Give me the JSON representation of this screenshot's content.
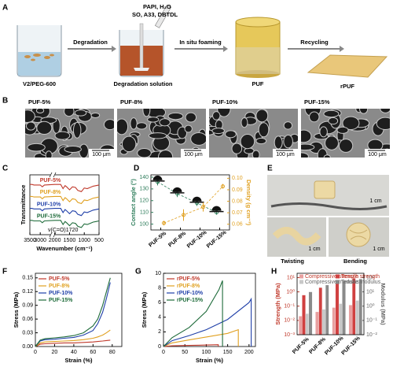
{
  "panel_a": {
    "label": "A",
    "reagents_line1": "PAPI,  H₂O",
    "reagents_line2": "SO,  A33,  DBTDL",
    "steps": [
      "Degradation",
      "In situ foaming",
      "Recycling"
    ],
    "items": [
      "V2/PEG-600",
      "Degradation solution",
      "PUF",
      "rPUF"
    ]
  },
  "panel_b": {
    "label": "B",
    "samples": [
      "PUF-5%",
      "PUF-8%",
      "PUF-10%",
      "PUF-15%"
    ],
    "scale_bar": "100 μm"
  },
  "panel_e": {
    "label": "E",
    "scale_bar": "1 cm",
    "captions": [
      "Twisting",
      "Bending"
    ]
  },
  "chart_data": [
    {
      "panel": "C",
      "type": "line",
      "xlabel": "Wavenumber (cm⁻¹)",
      "ylabel": "Transmittance",
      "annotation": "ν(C=O)1720",
      "x": [
        3500,
        3400,
        3300,
        3000,
        2900,
        2800,
        2000,
        1800,
        1720,
        1650,
        1600,
        1500,
        1400,
        1300,
        1220,
        1100,
        1000,
        900,
        800,
        700,
        600,
        500
      ],
      "xlim": [
        3500,
        500
      ],
      "xbreak": [
        2500,
        2000
      ],
      "xticks": [
        3500,
        3000,
        2000,
        1500,
        1000,
        500
      ],
      "ylim": [
        0,
        5
      ],
      "series": [
        {
          "name": "PUF-5%",
          "color": "#c0392b",
          "values": [
            4.2,
            4.2,
            4.15,
            4.15,
            4.0,
            4.15,
            4.2,
            4.2,
            3.85,
            4.1,
            4.0,
            3.75,
            4.0,
            3.95,
            3.7,
            3.6,
            3.9,
            3.85,
            3.95,
            4.05,
            4.1,
            4.15
          ]
        },
        {
          "name": "PUF-8%",
          "color": "#e0a020",
          "values": [
            3.2,
            3.2,
            3.15,
            3.15,
            3.0,
            3.15,
            3.2,
            3.2,
            2.85,
            3.1,
            3.0,
            2.75,
            3.0,
            2.95,
            2.7,
            2.6,
            2.9,
            2.85,
            2.95,
            3.05,
            3.1,
            3.15
          ]
        },
        {
          "name": "PUF-10%",
          "color": "#1f3fa8",
          "values": [
            2.2,
            2.2,
            2.15,
            2.15,
            2.0,
            2.15,
            2.2,
            2.2,
            1.85,
            2.1,
            2.0,
            1.75,
            2.0,
            1.95,
            1.7,
            1.6,
            1.9,
            1.85,
            1.95,
            2.05,
            2.1,
            2.15
          ]
        },
        {
          "name": "PUF-15%",
          "color": "#1e6b3a",
          "values": [
            1.2,
            1.2,
            1.15,
            1.15,
            1.0,
            1.15,
            1.2,
            1.2,
            0.85,
            1.1,
            1.0,
            0.75,
            1.0,
            0.95,
            0.7,
            0.6,
            0.9,
            0.85,
            0.95,
            1.05,
            1.1,
            1.15
          ]
        }
      ]
    },
    {
      "panel": "D",
      "type": "scatter",
      "ylabel": "Contact angle (°)",
      "y2label": "Density (g cm⁻³)",
      "categories": [
        "PUF-5%",
        "PUF-8%",
        "PUF-10%",
        "PUF-15%"
      ],
      "ylim": [
        95,
        142
      ],
      "yticks": [
        100,
        110,
        120,
        130,
        140
      ],
      "y2lim": [
        0.055,
        0.103
      ],
      "y2ticks": [
        0.06,
        0.07,
        0.08,
        0.09,
        {
          "value": 0.1,
          "label": "0.10"
        }
      ],
      "series": [
        {
          "color": "#2e7d5b",
          "values": [
            136,
            126,
            118,
            110
          ],
          "errors": [
            3,
            3,
            2.5,
            2
          ]
        },
        {
          "color": "#e0a020",
          "axis": "y2",
          "values": [
            0.061,
            0.068,
            0.075,
            0.093
          ],
          "errors": [
            0.002,
            0.005,
            0.004,
            0.002
          ]
        }
      ]
    },
    {
      "panel": "F",
      "type": "line",
      "xlabel": "Strain (%)",
      "ylabel": "Stress (MPa)",
      "x": [
        0,
        5,
        10,
        20,
        30,
        40,
        50,
        60,
        65,
        70,
        74,
        78
      ],
      "xlim": [
        0,
        90
      ],
      "xticks": [
        0,
        20,
        40,
        60,
        80
      ],
      "ylim": [
        0,
        0.16
      ],
      "yticks": [
        {
          "value": 0,
          "label": "0.00"
        },
        {
          "value": 0.03,
          "label": "0.03"
        },
        {
          "value": 0.06,
          "label": "0.06"
        },
        {
          "value": 0.09,
          "label": "0.09"
        },
        {
          "value": 0.12,
          "label": "0.12"
        },
        {
          "value": 0.15,
          "label": "0.15"
        }
      ],
      "series": [
        {
          "name": "PUF-5%",
          "color": "#c0392b",
          "values": [
            0,
            0.005,
            0.006,
            0.007,
            0.008,
            0.008,
            0.009,
            0.01,
            0.011,
            0.012,
            0.013,
            0.014
          ]
        },
        {
          "name": "PUF-8%",
          "color": "#e0a020",
          "values": [
            0,
            0.008,
            0.01,
            0.011,
            0.012,
            0.013,
            0.015,
            0.018,
            0.021,
            0.025,
            0.03,
            0.036
          ]
        },
        {
          "name": "PUF-10%",
          "color": "#1f3fa8",
          "values": [
            0,
            0.012,
            0.015,
            0.016,
            0.018,
            0.02,
            0.025,
            0.035,
            0.05,
            0.075,
            0.105,
            0.14
          ]
        },
        {
          "name": "PUF-15%",
          "color": "#1e6b3a",
          "values": [
            0,
            0.014,
            0.017,
            0.019,
            0.021,
            0.024,
            0.03,
            0.045,
            0.06,
            0.09,
            0.12,
            0.15
          ]
        }
      ]
    },
    {
      "panel": "G",
      "type": "line",
      "xlabel": "Strain (%)",
      "ylabel": "Stress (MPa)",
      "xlim": [
        0,
        215
      ],
      "xticks": [
        0,
        50,
        100,
        150,
        200
      ],
      "ylim": [
        0,
        10
      ],
      "yticks": [
        0,
        2,
        4,
        6,
        8,
        10
      ],
      "series": [
        {
          "name": "rPUF-5%",
          "color": "#c0392b",
          "x": [
            0,
            20,
            60,
            100,
            128,
            128
          ],
          "values": [
            0,
            0.1,
            0.15,
            0.2,
            0.25,
            0
          ]
        },
        {
          "name": "rPUF-8%",
          "color": "#e0a020",
          "x": [
            0,
            20,
            60,
            100,
            150,
            175,
            175
          ],
          "values": [
            0,
            0.5,
            0.9,
            1.3,
            1.8,
            2.3,
            0
          ]
        },
        {
          "name": "rPUF-10%",
          "color": "#1f3fa8",
          "x": [
            0,
            20,
            60,
            100,
            150,
            200,
            205,
            205
          ],
          "values": [
            0,
            0.8,
            1.5,
            2.3,
            3.7,
            6.0,
            6.5,
            0
          ]
        },
        {
          "name": "rPUF-15%",
          "color": "#1e6b3a",
          "x": [
            0,
            20,
            60,
            100,
            130,
            138,
            138
          ],
          "values": [
            0,
            1.2,
            2.6,
            4.8,
            7.8,
            9.0,
            0
          ]
        }
      ]
    },
    {
      "panel": "H",
      "type": "bar",
      "log_scale": true,
      "ylabel": "Strength (MPa)",
      "y2label": "Modulus (MPa)",
      "categories": [
        "PUF-5%",
        "PUF-8%",
        "PUF-10%",
        "PUF-15%"
      ],
      "ylim": [
        0.001,
        20
      ],
      "yticks": [
        {
          "value": 0.001,
          "label": "10⁻³"
        },
        {
          "value": 0.01,
          "label": "10⁻²"
        },
        {
          "value": 0.1,
          "label": "10⁻¹"
        },
        {
          "value": 1,
          "label": "10⁰"
        },
        {
          "value": 10,
          "label": "10¹"
        }
      ],
      "y2lim": [
        0.01,
        200
      ],
      "y2ticks": [
        {
          "value": 0.01,
          "label": "10⁻²"
        },
        {
          "value": 0.1,
          "label": "10⁻¹"
        },
        {
          "value": 1,
          "label": "10⁰"
        },
        {
          "value": 10,
          "label": "10¹"
        },
        {
          "value": 100,
          "label": "10²"
        }
      ],
      "series": [
        {
          "name": "Compressive strength",
          "color": "#e8a0a0",
          "values": [
            0.02,
            0.04,
            0.08,
            0.12
          ]
        },
        {
          "name": "Tensile strength",
          "color": "#d04040",
          "values": [
            0.6,
            2.0,
            6.5,
            9.0
          ]
        },
        {
          "name": "Compressive modulus",
          "color": "#c8c8c8",
          "axis": "y2",
          "values": [
            0.3,
            0.6,
            1.5,
            2.5
          ]
        },
        {
          "name": "Tensile modulus",
          "color": "#8a8a8a",
          "axis": "y2",
          "values": [
            10,
            30,
            60,
            80
          ]
        }
      ]
    }
  ]
}
